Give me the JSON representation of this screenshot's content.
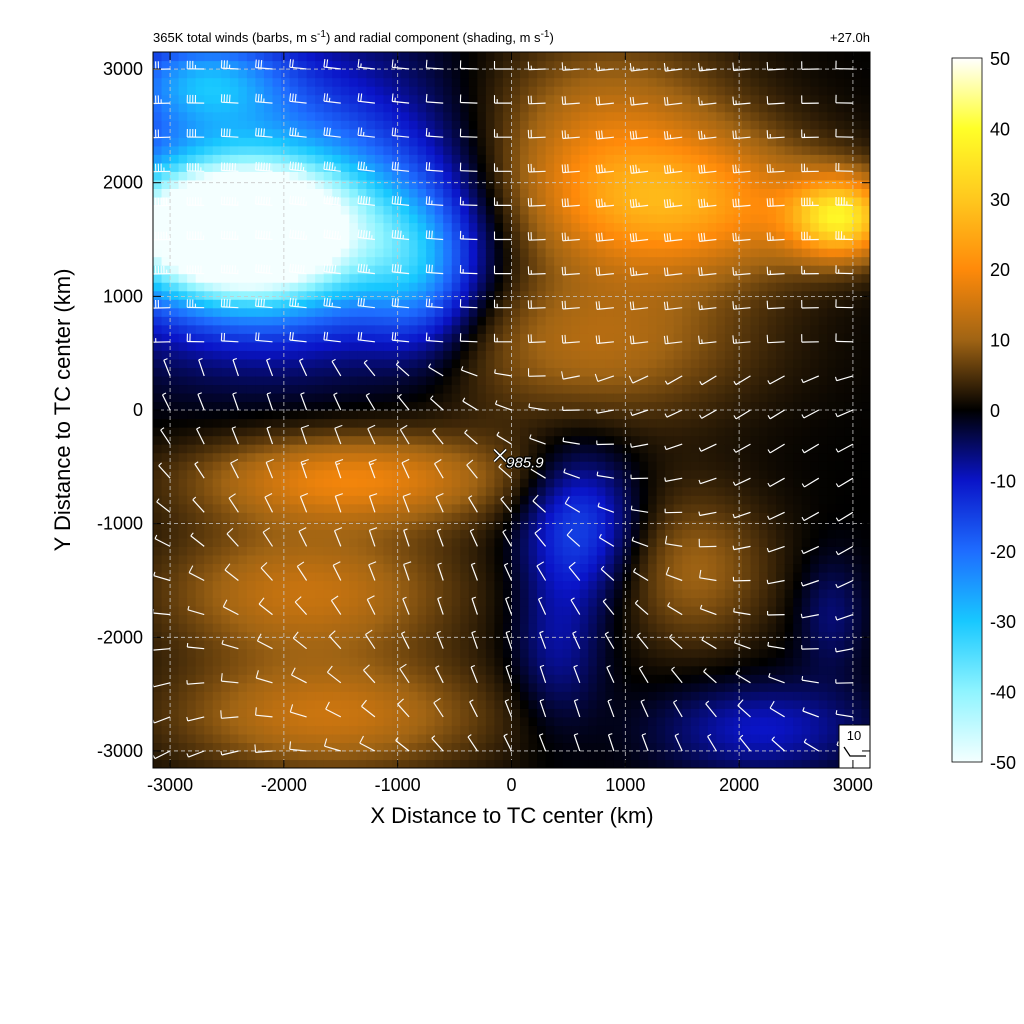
{
  "chart_data": {
    "type": "heatmap",
    "title_parts": {
      "a": "365K total winds (barbs, m s",
      "b": "-1",
      "c": ") and radial component (shading, m s",
      "d": "-1",
      "e": ")"
    },
    "time_label": "+27.0h",
    "xlabel": "X Distance to TC center (km)",
    "ylabel": "Y Distance to TC center (km)",
    "xlim": [
      -3150,
      3150
    ],
    "ylim": [
      -3150,
      3150
    ],
    "x_ticks": [
      -3000,
      -2000,
      -1000,
      0,
      1000,
      2000,
      3000
    ],
    "y_ticks": [
      -3000,
      -2000,
      -1000,
      0,
      1000,
      2000,
      3000
    ],
    "x_tick_labels": [
      "-3000",
      "-2000",
      "-1000",
      "0",
      "1000",
      "2000",
      "3000"
    ],
    "y_tick_labels": [
      "-3000",
      "-2000",
      "-1000",
      "0",
      "1000",
      "2000",
      "3000"
    ],
    "grid": true,
    "colorbar": {
      "range": [
        -50,
        50
      ],
      "ticks": [
        50,
        40,
        30,
        20,
        10,
        0,
        -10,
        -20,
        -30,
        -40,
        -50
      ],
      "tick_labels": [
        "50",
        "40",
        "30",
        "20",
        "10",
        "0",
        "-10",
        "-20",
        "-30",
        "-40",
        "-50"
      ],
      "stops": [
        {
          "value": -50,
          "color": "#f4ffff"
        },
        {
          "value": -40,
          "color": "#8ff4ff"
        },
        {
          "value": -30,
          "color": "#18c8ff"
        },
        {
          "value": -20,
          "color": "#1e6cff"
        },
        {
          "value": -10,
          "color": "#0a14c8"
        },
        {
          "value": 0,
          "color": "#000000"
        },
        {
          "value": 10,
          "color": "#a06414"
        },
        {
          "value": 20,
          "color": "#ff8a0a"
        },
        {
          "value": 30,
          "color": "#ffc81e"
        },
        {
          "value": 40,
          "color": "#ffff28"
        },
        {
          "value": 50,
          "color": "#ffffff"
        }
      ]
    },
    "shading_regions": [
      {
        "x": -2500,
        "y": 1600,
        "value": -42,
        "sx": 900,
        "sy": 500
      },
      {
        "x": -2200,
        "y": 1500,
        "value": -30,
        "sx": 1200,
        "sy": 700
      },
      {
        "x": -2000,
        "y": 1900,
        "value": -22,
        "sx": 1600,
        "sy": 1200
      },
      {
        "x": -2700,
        "y": 2900,
        "value": -20,
        "sx": 700,
        "sy": 400
      },
      {
        "x": -800,
        "y": 1200,
        "value": -16,
        "sx": 500,
        "sy": 700
      },
      {
        "x": 1500,
        "y": 1800,
        "value": 20,
        "sx": 1300,
        "sy": 600
      },
      {
        "x": 2900,
        "y": 1700,
        "value": 32,
        "sx": 450,
        "sy": 350
      },
      {
        "x": 800,
        "y": 2400,
        "value": 14,
        "sx": 1200,
        "sy": 900
      },
      {
        "x": 700,
        "y": 600,
        "value": 12,
        "sx": 1400,
        "sy": 700
      },
      {
        "x": -1400,
        "y": -600,
        "value": 18,
        "sx": 1400,
        "sy": 400
      },
      {
        "x": -1800,
        "y": -1600,
        "value": 14,
        "sx": 1300,
        "sy": 600
      },
      {
        "x": -1600,
        "y": -2700,
        "value": 14,
        "sx": 1400,
        "sy": 500
      },
      {
        "x": 600,
        "y": -1000,
        "value": -16,
        "sx": 500,
        "sy": 650
      },
      {
        "x": 400,
        "y": -2100,
        "value": -8,
        "sx": 400,
        "sy": 700
      },
      {
        "x": 2200,
        "y": -2800,
        "value": -10,
        "sx": 900,
        "sy": 400
      },
      {
        "x": 2800,
        "y": -1800,
        "value": -6,
        "sx": 300,
        "sy": 500
      },
      {
        "x": 1600,
        "y": -1400,
        "value": 10,
        "sx": 700,
        "sy": 700
      }
    ],
    "barb_grid": {
      "start": -3000,
      "end": 3000,
      "step": 300
    },
    "center_marker": {
      "x": -100,
      "y": -400,
      "label": "985.9"
    },
    "reference_barb": {
      "label": "10",
      "speed": 10
    }
  }
}
